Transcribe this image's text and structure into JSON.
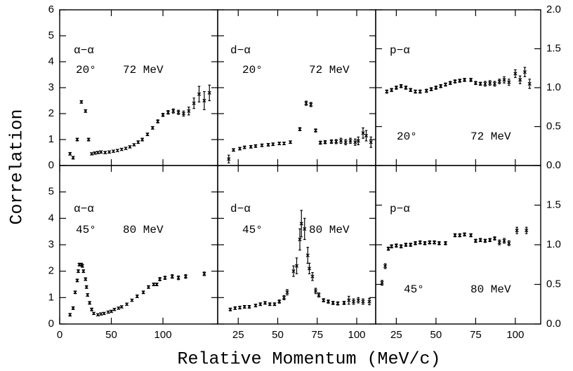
{
  "figure": {
    "ylabel": "Correlation",
    "xlabel": "Relative Momentum (MeV/c)"
  },
  "chart_data": [
    {
      "type": "scatter",
      "label": "α−α",
      "angle": "20°",
      "energy": "72 MeV",
      "xlim": [
        0,
        153
      ],
      "ylim": [
        0,
        6
      ],
      "yticks": [
        0,
        1,
        2,
        3,
        4,
        5,
        6
      ],
      "series": [
        {
          "color": "#000000",
          "x": [
            10,
            13,
            17,
            21,
            25,
            28,
            31,
            34,
            37,
            40,
            44,
            48,
            52,
            56,
            60,
            64,
            68,
            72,
            76,
            80,
            85,
            90,
            95,
            100,
            105,
            110,
            115,
            120,
            125,
            130,
            135,
            140,
            145
          ],
          "values": [
            0.45,
            0.3,
            1.0,
            2.45,
            2.1,
            1.0,
            0.45,
            0.48,
            0.5,
            0.52,
            0.5,
            0.52,
            0.55,
            0.58,
            0.62,
            0.66,
            0.72,
            0.8,
            0.9,
            1.0,
            1.2,
            1.45,
            1.7,
            1.95,
            2.05,
            2.1,
            2.05,
            2.0,
            2.1,
            2.4,
            2.75,
            2.5,
            2.8
          ],
          "errors": [
            0.05,
            0.05,
            0.05,
            0.05,
            0.05,
            0.05,
            0.04,
            0.04,
            0.04,
            0.04,
            0.04,
            0.04,
            0.04,
            0.04,
            0.04,
            0.04,
            0.04,
            0.04,
            0.05,
            0.05,
            0.05,
            0.05,
            0.06,
            0.06,
            0.07,
            0.08,
            0.08,
            0.1,
            0.15,
            0.2,
            0.3,
            0.35,
            0.3
          ]
        }
      ]
    },
    {
      "type": "scatter",
      "label": "d−α",
      "angle": "20°",
      "energy": "72 MeV",
      "xlim": [
        12,
        112
      ],
      "ylim": [
        0,
        6
      ],
      "series": [
        {
          "color": "#000000",
          "x": [
            19,
            22,
            26,
            29,
            33,
            36,
            40,
            44,
            47,
            51,
            54,
            58,
            64,
            68,
            71,
            74,
            77,
            80,
            84,
            87,
            90,
            93,
            96,
            99,
            101,
            104,
            106,
            109
          ],
          "values": [
            0.25,
            0.6,
            0.65,
            0.7,
            0.72,
            0.75,
            0.78,
            0.8,
            0.82,
            0.85,
            0.85,
            0.9,
            1.4,
            2.4,
            2.35,
            1.35,
            0.88,
            0.9,
            0.92,
            0.92,
            0.95,
            0.9,
            0.95,
            0.9,
            0.95,
            1.25,
            1.15,
            0.9
          ],
          "errors": [
            0.15,
            0.05,
            0.05,
            0.05,
            0.05,
            0.05,
            0.05,
            0.05,
            0.05,
            0.05,
            0.05,
            0.05,
            0.06,
            0.08,
            0.08,
            0.06,
            0.06,
            0.06,
            0.07,
            0.08,
            0.1,
            0.1,
            0.1,
            0.12,
            0.15,
            0.2,
            0.2,
            0.2
          ]
        }
      ]
    },
    {
      "type": "scatter",
      "label": "p−α",
      "angle": "20°",
      "energy": "72 MeV",
      "xlim": [
        12,
        116
      ],
      "y2lim": [
        0,
        2
      ],
      "y2ticks": [
        {
          "value": 0,
          "label": "0.0"
        },
        {
          "value": 0.5,
          "label": "0.5"
        },
        {
          "value": 1,
          "label": "1.0"
        },
        {
          "value": 1.5,
          "label": "1.5"
        },
        {
          "value": 2,
          "label": "2.0"
        }
      ],
      "series": [
        {
          "color": "#000000",
          "axis": "y2",
          "x": [
            19,
            22,
            25,
            28,
            31,
            34,
            37,
            40,
            44,
            47,
            50,
            53,
            56,
            59,
            62,
            65,
            68,
            72,
            75,
            78,
            81,
            84,
            87,
            90,
            93,
            96,
            100,
            103,
            106,
            109
          ],
          "values": [
            0.95,
            0.97,
            1.0,
            1.02,
            1.0,
            0.97,
            0.95,
            0.95,
            0.96,
            0.98,
            1.0,
            1.02,
            1.04,
            1.06,
            1.08,
            1.09,
            1.1,
            1.1,
            1.06,
            1.05,
            1.05,
            1.06,
            1.05,
            1.08,
            1.1,
            1.07,
            1.18,
            1.1,
            1.2,
            1.05
          ],
          "errors": [
            0.02,
            0.02,
            0.02,
            0.02,
            0.02,
            0.02,
            0.02,
            0.02,
            0.02,
            0.02,
            0.02,
            0.02,
            0.02,
            0.02,
            0.02,
            0.02,
            0.02,
            0.02,
            0.02,
            0.02,
            0.03,
            0.03,
            0.03,
            0.03,
            0.04,
            0.04,
            0.05,
            0.05,
            0.06,
            0.06
          ]
        }
      ]
    },
    {
      "type": "scatter",
      "label": "α−α",
      "angle": "45°",
      "energy": "80 MeV",
      "xlim": [
        0,
        153
      ],
      "ylim": [
        0,
        6
      ],
      "yticks": [
        0,
        1,
        2,
        3,
        4,
        5
      ],
      "xticks": [
        0,
        50,
        100
      ],
      "series": [
        {
          "color": "#000000",
          "x": [
            10,
            13,
            15,
            17,
            18,
            19,
            21,
            22,
            23,
            25,
            26,
            27,
            29,
            31,
            33,
            37,
            40,
            43,
            47,
            50,
            53,
            57,
            60,
            65,
            70,
            75,
            81,
            86,
            91,
            94,
            97,
            102,
            109,
            115,
            122,
            140
          ],
          "values": [
            0.35,
            0.6,
            1.2,
            1.65,
            2.0,
            2.25,
            2.25,
            2.2,
            2.0,
            1.7,
            1.4,
            1.1,
            0.8,
            0.55,
            0.4,
            0.35,
            0.38,
            0.4,
            0.45,
            0.48,
            0.55,
            0.6,
            0.65,
            0.75,
            0.9,
            1.05,
            1.2,
            1.4,
            1.5,
            1.5,
            1.7,
            1.75,
            1.8,
            1.75,
            1.8,
            1.9
          ],
          "errors": [
            0.05,
            0.05,
            0.05,
            0.05,
            0.05,
            0.05,
            0.05,
            0.05,
            0.05,
            0.05,
            0.05,
            0.05,
            0.05,
            0.05,
            0.04,
            0.04,
            0.04,
            0.04,
            0.04,
            0.04,
            0.04,
            0.04,
            0.04,
            0.04,
            0.04,
            0.05,
            0.05,
            0.05,
            0.05,
            0.05,
            0.06,
            0.06,
            0.07,
            0.07,
            0.07,
            0.07
          ]
        }
      ]
    },
    {
      "type": "scatter",
      "label": "d−α",
      "angle": "45°",
      "energy": "80 MeV",
      "xlim": [
        12,
        112
      ],
      "ylim": [
        0,
        6
      ],
      "xticks": [
        25,
        50,
        75,
        100
      ],
      "series": [
        {
          "color": "#000000",
          "x": [
            20,
            23,
            26,
            29,
            32,
            36,
            39,
            42,
            45,
            48,
            51,
            54,
            56,
            60,
            62,
            64,
            65,
            67,
            69,
            70,
            72,
            74,
            76,
            79,
            82,
            85,
            88,
            92,
            95,
            98,
            101,
            104,
            108
          ],
          "values": [
            0.55,
            0.6,
            0.62,
            0.65,
            0.65,
            0.7,
            0.75,
            0.8,
            0.75,
            0.75,
            0.85,
            1.0,
            1.2,
            2.0,
            2.2,
            3.2,
            3.8,
            3.6,
            2.6,
            2.1,
            1.8,
            1.25,
            1.1,
            0.9,
            0.85,
            0.8,
            0.78,
            0.8,
            0.9,
            0.85,
            0.9,
            0.85,
            0.85
          ],
          "errors": [
            0.05,
            0.05,
            0.05,
            0.05,
            0.05,
            0.05,
            0.05,
            0.05,
            0.05,
            0.05,
            0.06,
            0.08,
            0.1,
            0.2,
            0.3,
            0.4,
            0.5,
            0.4,
            0.3,
            0.2,
            0.15,
            0.1,
            0.08,
            0.06,
            0.06,
            0.06,
            0.06,
            0.06,
            0.15,
            0.1,
            0.1,
            0.1,
            0.12
          ]
        }
      ]
    },
    {
      "type": "scatter",
      "label": "p−α",
      "angle": "45°",
      "energy": "80 MeV",
      "xlim": [
        12,
        116
      ],
      "y2lim": [
        0,
        2
      ],
      "xticks": [
        25,
        50,
        75,
        100
      ],
      "y2ticks": [
        {
          "value": 0,
          "label": "0.0"
        },
        {
          "value": 0.5,
          "label": "0.5"
        },
        {
          "value": 1,
          "label": "1.0"
        },
        {
          "value": 1.5,
          "label": "1.5"
        }
      ],
      "series": [
        {
          "color": "#000000",
          "axis": "y2",
          "x": [
            16,
            18,
            20,
            22,
            25,
            28,
            31,
            34,
            37,
            40,
            43,
            46,
            49,
            52,
            56,
            62,
            65,
            68,
            72,
            75,
            78,
            81,
            84,
            87,
            90,
            93,
            96,
            101,
            107
          ],
          "values": [
            0.52,
            0.73,
            0.95,
            0.98,
            0.99,
            0.98,
            1.0,
            1.0,
            1.02,
            1.03,
            1.02,
            1.03,
            1.03,
            1.02,
            1.02,
            1.12,
            1.12,
            1.13,
            1.12,
            1.05,
            1.06,
            1.05,
            1.06,
            1.08,
            1.03,
            1.05,
            1.02,
            1.18,
            1.18
          ],
          "errors": [
            0.03,
            0.03,
            0.02,
            0.02,
            0.02,
            0.02,
            0.02,
            0.02,
            0.02,
            0.02,
            0.02,
            0.02,
            0.02,
            0.02,
            0.02,
            0.02,
            0.02,
            0.02,
            0.02,
            0.02,
            0.02,
            0.02,
            0.02,
            0.02,
            0.03,
            0.03,
            0.03,
            0.04,
            0.04
          ]
        }
      ]
    }
  ]
}
